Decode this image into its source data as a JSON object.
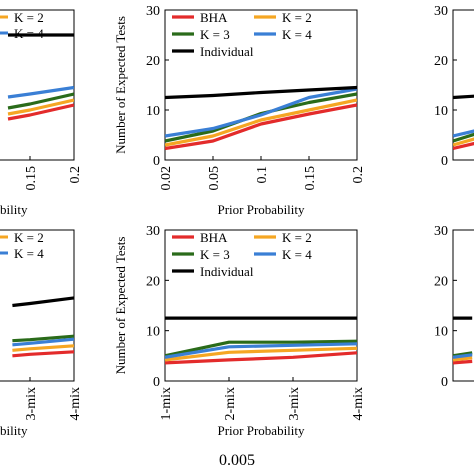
{
  "caption": "0.005",
  "chart_data": [
    {
      "panel": "top-left",
      "type": "line",
      "x_tick_labels": [
        "0.15",
        "0.2"
      ],
      "xlabel": "bility",
      "ylabel": "",
      "ylim": [
        0,
        30
      ],
      "legend": [
        {
          "name": "K = 2",
          "color": "#f5a623"
        },
        {
          "name": "K = 4",
          "color": "#3a7fd5"
        }
      ],
      "x": [
        0.125,
        0.15,
        0.2
      ],
      "series": [
        {
          "name": "BHA",
          "color": "#e32b2b",
          "values": [
            8.2,
            9.0,
            11.0
          ]
        },
        {
          "name": "K = 2",
          "color": "#f5a623",
          "values": [
            9.2,
            10.0,
            12.0
          ]
        },
        {
          "name": "K = 3",
          "color": "#2a6b1a",
          "values": [
            10.4,
            11.2,
            13.2
          ]
        },
        {
          "name": "K = 4",
          "color": "#3a7fd5",
          "values": [
            12.6,
            13.2,
            14.5
          ]
        },
        {
          "name": "Individual",
          "color": "#000000",
          "values": [
            25,
            25,
            25
          ]
        }
      ]
    },
    {
      "panel": "top-middle",
      "type": "line",
      "categories": [
        "0.02",
        "0.05",
        "0.1",
        "0.15",
        "0.2"
      ],
      "xlabel": "Prior Probability",
      "ylabel": "Number of Expected Tests",
      "y_tick_labels": [
        "0",
        "10",
        "20",
        "30"
      ],
      "ylim": [
        0,
        30
      ],
      "legend": [
        {
          "name": "BHA",
          "color": "#e32b2b"
        },
        {
          "name": "K = 2",
          "color": "#f5a623"
        },
        {
          "name": "K = 3",
          "color": "#2a6b1a"
        },
        {
          "name": "K = 4",
          "color": "#3a7fd5"
        },
        {
          "name": "Individual",
          "color": "#000000"
        }
      ],
      "series": [
        {
          "name": "BHA",
          "color": "#e32b2b",
          "values": [
            2.3,
            3.8,
            7.2,
            9.2,
            11.0
          ]
        },
        {
          "name": "K = 2",
          "color": "#f5a623",
          "values": [
            3.0,
            4.8,
            8.0,
            10.0,
            12.0
          ]
        },
        {
          "name": "K = 3",
          "color": "#2a6b1a",
          "values": [
            3.8,
            5.8,
            9.3,
            11.5,
            13.2
          ]
        },
        {
          "name": "K = 4",
          "color": "#3a7fd5",
          "values": [
            4.8,
            6.3,
            9.0,
            12.5,
            14.2
          ]
        },
        {
          "name": "Individual",
          "color": "#000000",
          "values": [
            12.5,
            12.9,
            13.5,
            14.0,
            14.5
          ]
        }
      ]
    },
    {
      "panel": "top-right",
      "type": "line",
      "y_tick_labels": [
        "0",
        "10",
        "20",
        "30"
      ],
      "ylim": [
        0,
        30
      ],
      "x": [
        0.02,
        0.05
      ],
      "series": [
        {
          "name": "BHA",
          "color": "#e32b2b",
          "values": [
            2.3,
            3.8
          ]
        },
        {
          "name": "K = 2",
          "color": "#f5a623",
          "values": [
            3.0,
            4.8
          ]
        },
        {
          "name": "K = 3",
          "color": "#2a6b1a",
          "values": [
            3.8,
            5.8
          ]
        },
        {
          "name": "K = 4",
          "color": "#3a7fd5",
          "values": [
            4.8,
            6.3
          ]
        },
        {
          "name": "Individual",
          "color": "#000000",
          "values": [
            12.5,
            12.9
          ]
        }
      ]
    },
    {
      "panel": "bottom-left",
      "type": "line",
      "x_tick_labels": [
        "3-mix",
        "4-mix"
      ],
      "xlabel": "bility",
      "ylabel": "",
      "ylim": [
        0,
        30
      ],
      "legend": [
        {
          "name": "K = 2",
          "color": "#f5a623"
        },
        {
          "name": "K = 4",
          "color": "#3a7fd5"
        }
      ],
      "x": [
        2.6,
        3,
        4
      ],
      "series": [
        {
          "name": "BHA",
          "color": "#e32b2b",
          "values": [
            5.0,
            5.3,
            5.8
          ]
        },
        {
          "name": "K = 2",
          "color": "#f5a623",
          "values": [
            6.1,
            6.4,
            7.0
          ]
        },
        {
          "name": "K = 3",
          "color": "#2a6b1a",
          "values": [
            8.0,
            8.2,
            8.9
          ]
        },
        {
          "name": "K = 4",
          "color": "#3a7fd5",
          "values": [
            7.2,
            7.5,
            8.3
          ]
        },
        {
          "name": "Individual",
          "color": "#000000",
          "values": [
            15.0,
            15.4,
            16.5
          ]
        }
      ]
    },
    {
      "panel": "bottom-middle",
      "type": "line",
      "categories": [
        "1-mix",
        "2-mix",
        "3-mix",
        "4-mix"
      ],
      "xlabel": "Prior Probability",
      "ylabel": "Number of Expected Tests",
      "y_tick_labels": [
        "0",
        "10",
        "20",
        "30"
      ],
      "ylim": [
        0,
        30
      ],
      "legend": [
        {
          "name": "BHA",
          "color": "#e32b2b"
        },
        {
          "name": "K = 2",
          "color": "#f5a623"
        },
        {
          "name": "K = 3",
          "color": "#2a6b1a"
        },
        {
          "name": "K = 4",
          "color": "#3a7fd5"
        },
        {
          "name": "Individual",
          "color": "#000000"
        }
      ],
      "series": [
        {
          "name": "BHA",
          "color": "#e32b2b",
          "values": [
            3.6,
            4.2,
            4.7,
            5.6
          ]
        },
        {
          "name": "K = 2",
          "color": "#f5a623",
          "values": [
            4.2,
            5.7,
            6.1,
            6.5
          ]
        },
        {
          "name": "K = 3",
          "color": "#2a6b1a",
          "values": [
            5.0,
            7.7,
            7.7,
            7.9
          ]
        },
        {
          "name": "K = 4",
          "color": "#3a7fd5",
          "values": [
            4.7,
            6.8,
            7.1,
            7.4
          ]
        },
        {
          "name": "Individual",
          "color": "#000000",
          "values": [
            12.5,
            12.5,
            12.5,
            12.5
          ]
        }
      ]
    },
    {
      "panel": "bottom-right",
      "type": "line",
      "y_tick_labels": [
        "0",
        "10",
        "20",
        "30"
      ],
      "ylim": [
        0,
        30
      ],
      "x": [
        1,
        1.3
      ],
      "series": [
        {
          "name": "BHA",
          "color": "#e32b2b",
          "values": [
            3.6,
            3.9
          ]
        },
        {
          "name": "K = 2",
          "color": "#f5a623",
          "values": [
            4.2,
            4.6
          ]
        },
        {
          "name": "K = 3",
          "color": "#2a6b1a",
          "values": [
            5.0,
            5.6
          ]
        },
        {
          "name": "K = 4",
          "color": "#3a7fd5",
          "values": [
            4.7,
            5.2
          ]
        },
        {
          "name": "Individual",
          "color": "#000000",
          "values": [
            12.5,
            12.5
          ]
        }
      ]
    }
  ]
}
